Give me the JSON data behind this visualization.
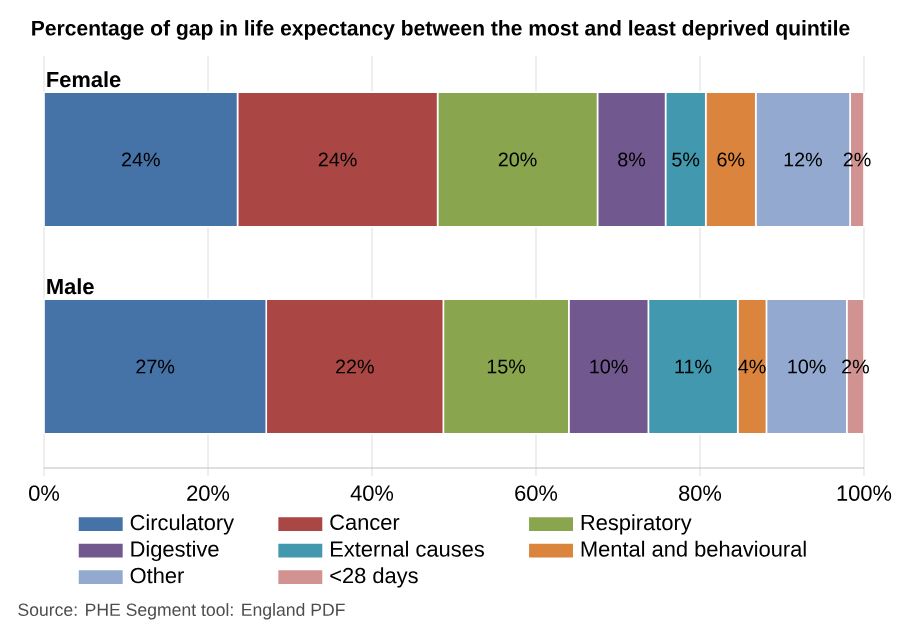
{
  "chart_data": {
    "type": "bar",
    "orientation": "horizontal",
    "stacked": true,
    "title": "Percentage of gap in life expectancy between the most and least deprived quintile",
    "categories": [
      "Female",
      "Male"
    ],
    "series": [
      {
        "name": "Circulatory",
        "color": "#4572a7",
        "values": [
          23.6,
          27.1
        ],
        "value_labels": [
          "24%",
          "27%"
        ]
      },
      {
        "name": "Cancer",
        "color": "#aa4643",
        "values": [
          24.4,
          21.6
        ],
        "value_labels": [
          "24%",
          "22%"
        ]
      },
      {
        "name": "Respiratory",
        "color": "#89a54e",
        "values": [
          19.5,
          15.3
        ],
        "value_labels": [
          "20%",
          "15%"
        ]
      },
      {
        "name": "Digestive",
        "color": "#71588f",
        "values": [
          8.3,
          9.7
        ],
        "value_labels": [
          "8%",
          "10%"
        ]
      },
      {
        "name": "External causes",
        "color": "#4198af",
        "values": [
          4.9,
          10.9
        ],
        "value_labels": [
          "5%",
          "11%"
        ]
      },
      {
        "name": "Mental and behavioural",
        "color": "#db843d",
        "values": [
          6.1,
          3.5
        ],
        "value_labels": [
          "6%",
          "4%"
        ]
      },
      {
        "name": "Other",
        "color": "#93a9cf",
        "values": [
          11.5,
          9.8
        ],
        "value_labels": [
          "12%",
          "10%"
        ]
      },
      {
        "name": "<28 days",
        "color": "#d19392",
        "values": [
          1.7,
          2.1
        ],
        "value_labels": [
          "2%",
          "2%"
        ]
      }
    ],
    "xlim": [
      0,
      100
    ],
    "xticks": [
      {
        "value": 0,
        "label": "0%"
      },
      {
        "value": 20,
        "label": "20%"
      },
      {
        "value": 40,
        "label": "40%"
      },
      {
        "value": 60,
        "label": "60%"
      },
      {
        "value": 80,
        "label": "80%"
      },
      {
        "value": 100,
        "label": "100%"
      }
    ],
    "grid": "x",
    "legend": "bottom",
    "annotations": [
      "Source: PHE Segment tool: England PDF"
    ]
  }
}
